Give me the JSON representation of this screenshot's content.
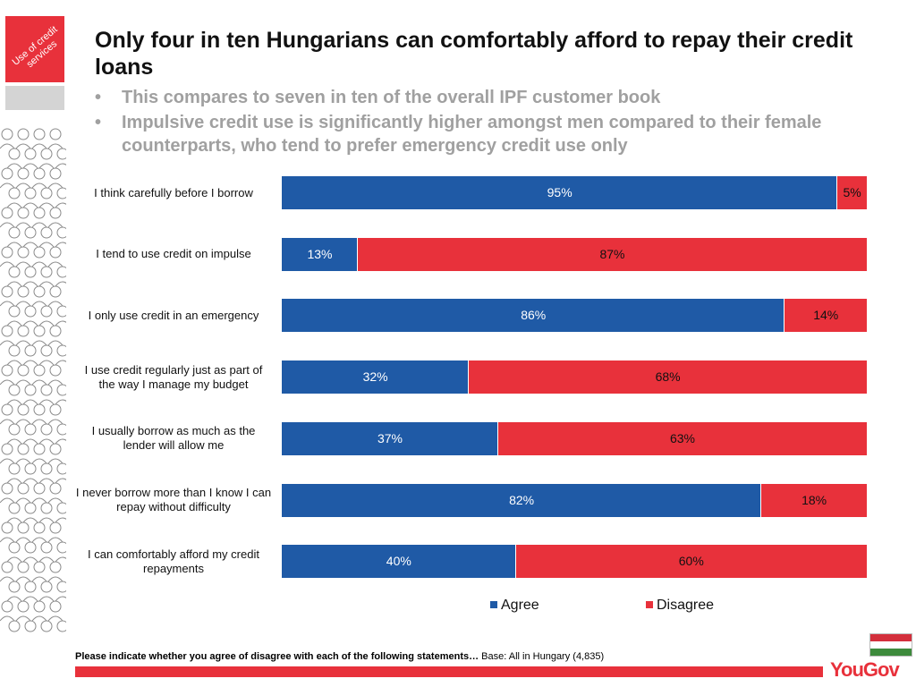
{
  "sidebar": {
    "badge_text": "Use of credit services"
  },
  "header": {
    "title": "Only four in ten Hungarians can comfortably afford to repay their credit loans",
    "bullets": [
      "This compares to seven in ten of the overall IPF customer book",
      "Impulsive credit use is significantly higher amongst men compared to their female counterparts, who tend to prefer emergency credit use only"
    ]
  },
  "colors": {
    "agree": "#1f5aa6",
    "disagree": "#e8313b",
    "accent_red": "#e8313b",
    "flag_red": "#d32f3c",
    "flag_white": "#ffffff",
    "flag_green": "#3d8a3c"
  },
  "chart_data": {
    "type": "bar",
    "orientation": "horizontal",
    "stacked": true,
    "percent": true,
    "categories": [
      "I think carefully before I borrow",
      "I tend to use credit on impulse",
      "I only use credit in an emergency",
      "I use credit regularly just as part of the way I manage my budget",
      "I usually borrow as much as the lender will allow me",
      "I never  borrow more than I know I can repay without difficulty",
      "I can comfortably afford my credit repayments"
    ],
    "series": [
      {
        "name": "Agree",
        "values": [
          95,
          13,
          86,
          32,
          37,
          82,
          40
        ],
        "labels": [
          "95%",
          "13%",
          "86%",
          "32%",
          "37%",
          "82%",
          "40%"
        ]
      },
      {
        "name": "Disagree",
        "values": [
          5,
          87,
          14,
          68,
          63,
          18,
          60
        ],
        "labels": [
          "5%",
          "87%",
          "14%",
          "68%",
          "63%",
          "18%",
          "60%"
        ]
      }
    ],
    "xlim": [
      0,
      100
    ],
    "legend_position": "bottom",
    "grid": false
  },
  "footer": {
    "question": "Please indicate whether you agree of disagree with each of the following statements…",
    "base": " Base: All in Hungary (4,835)",
    "logo": "YouGov"
  }
}
